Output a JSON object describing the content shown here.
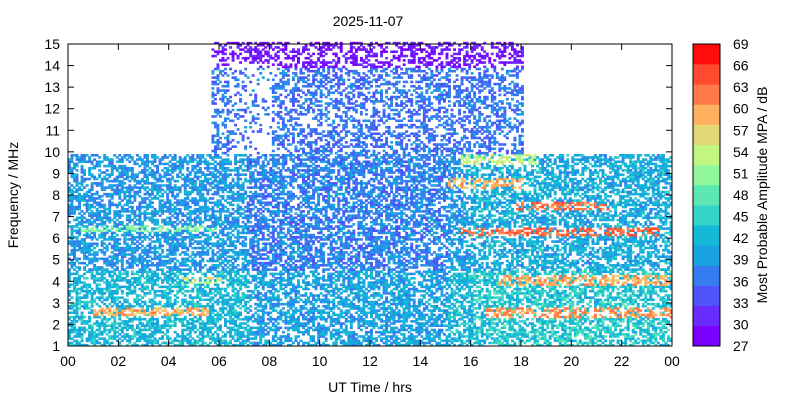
{
  "chart_data": {
    "type": "heatmap",
    "title": "2025-11-07",
    "xlabel": "UT Time / hrs",
    "ylabel": "Frequency / MHz",
    "colorbar_label": "Most Probable Amplitude MPA / dB",
    "xlim": [
      0,
      24
    ],
    "ylim": [
      1,
      15
    ],
    "x_ticks": [
      "00",
      "02",
      "04",
      "06",
      "08",
      "10",
      "12",
      "14",
      "16",
      "18",
      "20",
      "22",
      "00"
    ],
    "y_ticks": [
      "1",
      "2",
      "3",
      "4",
      "5",
      "6",
      "7",
      "8",
      "9",
      "10",
      "11",
      "12",
      "13",
      "14",
      "15"
    ],
    "colorbar": {
      "min": 27,
      "max": 69,
      "step": 3,
      "ticks": [
        "27",
        "30",
        "33",
        "36",
        "39",
        "42",
        "45",
        "48",
        "51",
        "54",
        "57",
        "60",
        "63",
        "66",
        "69"
      ],
      "colors": [
        "#7a00ff",
        "#6a2bff",
        "#4f54fa",
        "#347cef",
        "#1aa3e1",
        "#13b9d6",
        "#36d4c6",
        "#5de8b3",
        "#90f79a",
        "#c2f77f",
        "#e2d875",
        "#ffb160",
        "#ff7a48",
        "#ff4a30",
        "#ff0d0d"
      ]
    },
    "regions": {
      "coverage_lower": {
        "x": [
          0,
          24
        ],
        "y": [
          1,
          9.8
        ]
      },
      "coverage_upper": {
        "x": [
          5.6,
          18
        ],
        "y": [
          9.8,
          15
        ]
      },
      "sparse_upper_gap": {
        "x": [
          6.3,
          8.0
        ],
        "y": [
          9.8,
          14.0
        ]
      }
    },
    "hotspots": [
      {
        "x": [
          0.8,
          5.5
        ],
        "y": [
          2.4,
          2.8
        ],
        "value": 64
      },
      {
        "x": [
          16.5,
          24
        ],
        "y": [
          2.3,
          2.8
        ],
        "value": 66
      },
      {
        "x": [
          17.0,
          24
        ],
        "y": [
          3.8,
          4.3
        ],
        "value": 64
      },
      {
        "x": [
          15.5,
          23.5
        ],
        "y": [
          6.0,
          6.4
        ],
        "value": 68
      },
      {
        "x": [
          17.5,
          21.5
        ],
        "y": [
          7.2,
          7.6
        ],
        "value": 67
      },
      {
        "x": [
          15.0,
          18.0
        ],
        "y": [
          8.2,
          8.7
        ],
        "value": 64
      },
      {
        "x": [
          15.5,
          18.5
        ],
        "y": [
          9.3,
          9.8
        ],
        "value": 58
      },
      {
        "x": [
          4.5,
          6.0
        ],
        "y": [
          3.9,
          4.2
        ],
        "value": 60
      },
      {
        "x": [
          0.5,
          6.0
        ],
        "y": [
          6.2,
          6.5
        ],
        "value": 54
      }
    ]
  }
}
